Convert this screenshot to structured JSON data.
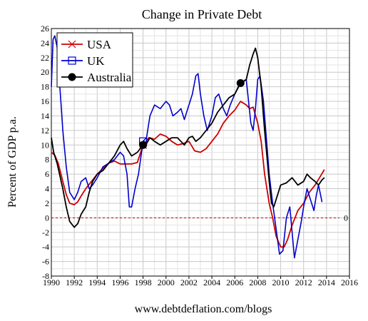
{
  "chart_data": {
    "type": "line",
    "title": "Change in Private Debt",
    "ylabel": "Percent of GDP p.a.",
    "footer": "www.debtdeflation.com/blogs",
    "xlim": [
      1990,
      2016
    ],
    "ylim": [
      -8,
      26
    ],
    "x_ticks": [
      1990,
      1992,
      1994,
      1996,
      1998,
      2000,
      2002,
      2004,
      2006,
      2008,
      2010,
      2012,
      2014,
      2016
    ],
    "y_ticks": [
      -8,
      -6,
      -4,
      -2,
      0,
      2,
      4,
      6,
      8,
      10,
      12,
      14,
      16,
      18,
      20,
      22,
      24,
      26
    ],
    "grid": true,
    "legend_position": "top-left",
    "zero_line": {
      "y": 0,
      "label": "0",
      "color": "#c00000"
    },
    "series": [
      {
        "name": "USA",
        "color": "#cc0000",
        "marker": "x",
        "points": [
          [
            1990.0,
            9.0
          ],
          [
            1990.3,
            8.6
          ],
          [
            1990.6,
            7.5
          ],
          [
            1991.0,
            5.0
          ],
          [
            1991.3,
            3.2
          ],
          [
            1991.6,
            2.0
          ],
          [
            1992.0,
            1.8
          ],
          [
            1992.3,
            2.2
          ],
          [
            1992.6,
            3.0
          ],
          [
            1993.0,
            4.0
          ],
          [
            1993.5,
            5.0
          ],
          [
            1994.0,
            6.0
          ],
          [
            1994.5,
            6.8
          ],
          [
            1995.0,
            7.5
          ],
          [
            1995.5,
            7.8
          ],
          [
            1996.0,
            7.4
          ],
          [
            1996.5,
            7.4
          ],
          [
            1997.0,
            7.4
          ],
          [
            1997.5,
            7.6
          ],
          [
            1998.0,
            10.0
          ],
          [
            1998.5,
            11.0
          ],
          [
            1999.0,
            10.8
          ],
          [
            1999.5,
            11.5
          ],
          [
            2000.0,
            11.2
          ],
          [
            2000.5,
            10.5
          ],
          [
            2001.0,
            10.0
          ],
          [
            2001.5,
            10.2
          ],
          [
            2002.0,
            10.5
          ],
          [
            2002.5,
            9.2
          ],
          [
            2003.0,
            9.0
          ],
          [
            2003.5,
            9.5
          ],
          [
            2004.0,
            10.5
          ],
          [
            2004.5,
            11.5
          ],
          [
            2005.0,
            13.0
          ],
          [
            2005.5,
            14.0
          ],
          [
            2006.0,
            14.8
          ],
          [
            2006.5,
            16.0
          ],
          [
            2007.0,
            15.5
          ],
          [
            2007.3,
            15.0
          ],
          [
            2007.6,
            15.2
          ],
          [
            2008.0,
            13.0
          ],
          [
            2008.3,
            10.5
          ],
          [
            2008.6,
            6.0
          ],
          [
            2009.0,
            2.0
          ],
          [
            2009.3,
            0.0
          ],
          [
            2009.6,
            -2.5
          ],
          [
            2010.0,
            -4.0
          ],
          [
            2010.3,
            -4.0
          ],
          [
            2010.6,
            -3.0
          ],
          [
            2011.0,
            -1.0
          ],
          [
            2011.5,
            1.0
          ],
          [
            2012.0,
            2.0
          ],
          [
            2012.5,
            3.5
          ],
          [
            2013.0,
            4.5
          ],
          [
            2013.5,
            5.8
          ],
          [
            2013.8,
            6.6
          ]
        ]
      },
      {
        "name": "UK",
        "color": "#0000cc",
        "marker": "square",
        "points": [
          [
            1990.0,
            18.0
          ],
          [
            1990.15,
            24.5
          ],
          [
            1990.3,
            25.0
          ],
          [
            1990.5,
            23.5
          ],
          [
            1990.7,
            19.0
          ],
          [
            1991.0,
            12.0
          ],
          [
            1991.3,
            7.0
          ],
          [
            1991.6,
            3.5
          ],
          [
            1992.0,
            2.5
          ],
          [
            1992.3,
            3.5
          ],
          [
            1992.6,
            5.0
          ],
          [
            1993.0,
            5.5
          ],
          [
            1993.3,
            4.0
          ],
          [
            1993.6,
            4.5
          ],
          [
            1994.0,
            5.5
          ],
          [
            1994.5,
            7.0
          ],
          [
            1995.0,
            7.5
          ],
          [
            1995.5,
            8.0
          ],
          [
            1996.0,
            9.0
          ],
          [
            1996.3,
            8.5
          ],
          [
            1996.6,
            6.0
          ],
          [
            1996.8,
            1.5
          ],
          [
            1997.0,
            1.5
          ],
          [
            1997.3,
            4.0
          ],
          [
            1997.6,
            6.0
          ],
          [
            1998.0,
            10.5
          ],
          [
            1998.3,
            11.0
          ],
          [
            1998.6,
            14.0
          ],
          [
            1999.0,
            15.5
          ],
          [
            1999.5,
            15.0
          ],
          [
            2000.0,
            16.0
          ],
          [
            2000.3,
            15.5
          ],
          [
            2000.6,
            14.0
          ],
          [
            2001.0,
            14.5
          ],
          [
            2001.3,
            15.0
          ],
          [
            2001.6,
            13.5
          ],
          [
            2002.0,
            15.5
          ],
          [
            2002.3,
            17.0
          ],
          [
            2002.6,
            19.5
          ],
          [
            2002.8,
            19.8
          ],
          [
            2003.0,
            17.0
          ],
          [
            2003.3,
            14.0
          ],
          [
            2003.6,
            12.0
          ],
          [
            2004.0,
            14.0
          ],
          [
            2004.3,
            16.5
          ],
          [
            2004.6,
            17.0
          ],
          [
            2005.0,
            15.0
          ],
          [
            2005.3,
            14.0
          ],
          [
            2005.6,
            15.5
          ],
          [
            2006.0,
            17.0
          ],
          [
            2006.3,
            18.0
          ],
          [
            2006.6,
            18.5
          ],
          [
            2007.0,
            19.0
          ],
          [
            2007.2,
            16.0
          ],
          [
            2007.4,
            13.0
          ],
          [
            2007.6,
            12.0
          ],
          [
            2007.8,
            15.0
          ],
          [
            2008.0,
            19.0
          ],
          [
            2008.2,
            19.5
          ],
          [
            2008.5,
            16.0
          ],
          [
            2008.8,
            10.0
          ],
          [
            2009.0,
            6.0
          ],
          [
            2009.3,
            2.0
          ],
          [
            2009.6,
            -1.5
          ],
          [
            2009.9,
            -5.0
          ],
          [
            2010.2,
            -4.5
          ],
          [
            2010.5,
            0.0
          ],
          [
            2010.8,
            1.5
          ],
          [
            2011.0,
            -2.0
          ],
          [
            2011.2,
            -5.5
          ],
          [
            2011.5,
            -3.0
          ],
          [
            2011.8,
            -0.5
          ],
          [
            2012.0,
            1.5
          ],
          [
            2012.3,
            4.0
          ],
          [
            2012.6,
            2.5
          ],
          [
            2012.9,
            1.0
          ],
          [
            2013.1,
            3.0
          ],
          [
            2013.3,
            4.5
          ],
          [
            2013.5,
            3.0
          ],
          [
            2013.6,
            2.2
          ]
        ]
      },
      {
        "name": "Australia",
        "color": "#000000",
        "marker": "circle",
        "points": [
          [
            1990.0,
            11.0
          ],
          [
            1990.2,
            9.0
          ],
          [
            1990.5,
            7.5
          ],
          [
            1991.0,
            4.0
          ],
          [
            1991.3,
            1.5
          ],
          [
            1991.6,
            -0.5
          ],
          [
            1992.0,
            -1.3
          ],
          [
            1992.3,
            -0.8
          ],
          [
            1992.6,
            0.5
          ],
          [
            1993.0,
            1.5
          ],
          [
            1993.3,
            3.5
          ],
          [
            1993.6,
            5.0
          ],
          [
            1994.0,
            6.0
          ],
          [
            1994.5,
            6.5
          ],
          [
            1995.0,
            7.5
          ],
          [
            1995.5,
            8.5
          ],
          [
            1996.0,
            10.0
          ],
          [
            1996.3,
            10.5
          ],
          [
            1996.6,
            9.5
          ],
          [
            1997.0,
            8.5
          ],
          [
            1997.5,
            9.0
          ],
          [
            1998.0,
            10.0
          ],
          [
            1998.3,
            10.2
          ],
          [
            1998.6,
            11.0
          ],
          [
            1999.0,
            10.5
          ],
          [
            1999.5,
            10.0
          ],
          [
            2000.0,
            10.5
          ],
          [
            2000.5,
            11.0
          ],
          [
            2001.0,
            11.0
          ],
          [
            2001.3,
            10.5
          ],
          [
            2001.6,
            10.0
          ],
          [
            2002.0,
            11.0
          ],
          [
            2002.3,
            11.2
          ],
          [
            2002.6,
            10.5
          ],
          [
            2003.0,
            11.0
          ],
          [
            2003.5,
            12.0
          ],
          [
            2004.0,
            13.0
          ],
          [
            2004.5,
            14.5
          ],
          [
            2005.0,
            15.5
          ],
          [
            2005.5,
            16.5
          ],
          [
            2006.0,
            17.0
          ],
          [
            2006.5,
            18.5
          ],
          [
            2007.0,
            19.0
          ],
          [
            2007.3,
            21.0
          ],
          [
            2007.6,
            22.5
          ],
          [
            2007.8,
            23.3
          ],
          [
            2008.0,
            22.0
          ],
          [
            2008.3,
            18.0
          ],
          [
            2008.6,
            12.0
          ],
          [
            2009.0,
            5.0
          ],
          [
            2009.2,
            2.0
          ],
          [
            2009.4,
            1.5
          ],
          [
            2009.7,
            3.0
          ],
          [
            2010.0,
            4.5
          ],
          [
            2010.5,
            4.8
          ],
          [
            2011.0,
            5.5
          ],
          [
            2011.5,
            4.5
          ],
          [
            2012.0,
            5.0
          ],
          [
            2012.3,
            6.0
          ],
          [
            2012.6,
            5.5
          ],
          [
            2013.0,
            5.0
          ],
          [
            2013.3,
            4.5
          ],
          [
            2013.6,
            5.2
          ],
          [
            2013.8,
            5.5
          ]
        ]
      }
    ]
  }
}
